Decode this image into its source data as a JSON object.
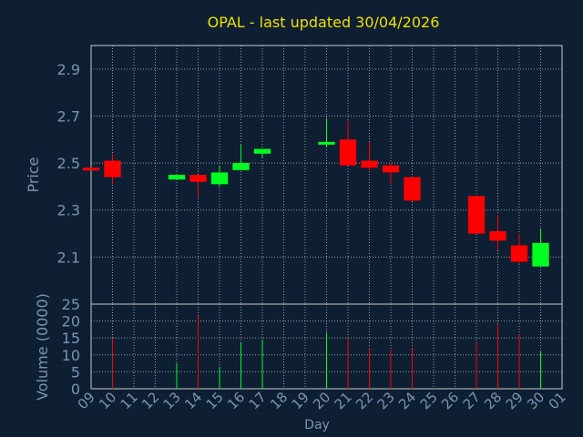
{
  "colors": {
    "background": "#0e1f33",
    "title": "#f0e000",
    "axis_text": "#7b93b3",
    "grid": "#ffffff",
    "up": "#00ff20",
    "down": "#ff0000",
    "border": "#c8c8c8"
  },
  "chart_data": [
    {
      "type": "candlestick",
      "title": "OPAL - last updated 30/04/2026",
      "ylabel": "Price",
      "ylim": [
        1.9,
        3.0
      ],
      "yticks": [
        "2.9",
        "2.7",
        "2.5",
        "2.3",
        "2.1"
      ],
      "ytick_values": [
        2.9,
        2.7,
        2.5,
        2.3,
        2.1
      ],
      "grid": true,
      "candles": [
        {
          "day": 9,
          "open": 2.48,
          "high": 2.48,
          "low": 2.47,
          "close": 2.47
        },
        {
          "day": 10,
          "open": 2.51,
          "high": 2.54,
          "low": 2.41,
          "close": 2.44
        },
        {
          "day": 13,
          "open": 2.43,
          "high": 2.45,
          "low": 2.43,
          "close": 2.45
        },
        {
          "day": 14,
          "open": 2.45,
          "high": 2.45,
          "low": 2.36,
          "close": 2.42
        },
        {
          "day": 15,
          "open": 2.41,
          "high": 2.49,
          "low": 2.4,
          "close": 2.46
        },
        {
          "day": 16,
          "open": 2.47,
          "high": 2.58,
          "low": 2.47,
          "close": 2.5
        },
        {
          "day": 17,
          "open": 2.54,
          "high": 2.56,
          "low": 2.52,
          "close": 2.56
        },
        {
          "day": 20,
          "open": 2.58,
          "high": 2.69,
          "low": 2.57,
          "close": 2.59
        },
        {
          "day": 21,
          "open": 2.6,
          "high": 2.68,
          "low": 2.49,
          "close": 2.49
        },
        {
          "day": 22,
          "open": 2.51,
          "high": 2.59,
          "low": 2.47,
          "close": 2.48
        },
        {
          "day": 23,
          "open": 2.49,
          "high": 2.5,
          "low": 2.41,
          "close": 2.46
        },
        {
          "day": 24,
          "open": 2.44,
          "high": 2.44,
          "low": 2.34,
          "close": 2.34
        },
        {
          "day": 27,
          "open": 2.36,
          "high": 2.36,
          "low": 2.2,
          "close": 2.2
        },
        {
          "day": 28,
          "open": 2.21,
          "high": 2.28,
          "low": 2.13,
          "close": 2.17
        },
        {
          "day": 29,
          "open": 2.15,
          "high": 2.2,
          "low": 2.07,
          "close": 2.08
        },
        {
          "day": 30,
          "open": 2.06,
          "high": 2.22,
          "low": 2.06,
          "close": 2.16
        }
      ]
    },
    {
      "type": "bar",
      "ylabel": "Volume (0000)",
      "xlabel": "Day",
      "ylim": [
        0,
        25
      ],
      "yticks": [
        "0",
        "5",
        "10",
        "15",
        "20",
        "25"
      ],
      "ytick_values": [
        0,
        5,
        10,
        15,
        20,
        25
      ],
      "categories": [
        "09",
        "10",
        "11",
        "12",
        "13",
        "14",
        "15",
        "16",
        "17",
        "18",
        "19",
        "20",
        "21",
        "22",
        "23",
        "24",
        "25",
        "26",
        "27",
        "28",
        "29",
        "30",
        "01"
      ],
      "volumes": [
        {
          "day": 10,
          "value": 15,
          "direction": "down"
        },
        {
          "day": 13,
          "value": 7.5,
          "direction": "up"
        },
        {
          "day": 14,
          "value": 21.5,
          "direction": "down"
        },
        {
          "day": 15,
          "value": 6.5,
          "direction": "up"
        },
        {
          "day": 16,
          "value": 13.5,
          "direction": "up"
        },
        {
          "day": 17,
          "value": 14.5,
          "direction": "up"
        },
        {
          "day": 20,
          "value": 16.5,
          "direction": "up"
        },
        {
          "day": 21,
          "value": 15,
          "direction": "down"
        },
        {
          "day": 22,
          "value": 12,
          "direction": "down"
        },
        {
          "day": 23,
          "value": 11.5,
          "direction": "down"
        },
        {
          "day": 24,
          "value": 12,
          "direction": "down"
        },
        {
          "day": 27,
          "value": 13.5,
          "direction": "down"
        },
        {
          "day": 28,
          "value": 19,
          "direction": "down"
        },
        {
          "day": 29,
          "value": 16,
          "direction": "down"
        },
        {
          "day": 30,
          "value": 11,
          "direction": "up"
        }
      ]
    }
  ]
}
